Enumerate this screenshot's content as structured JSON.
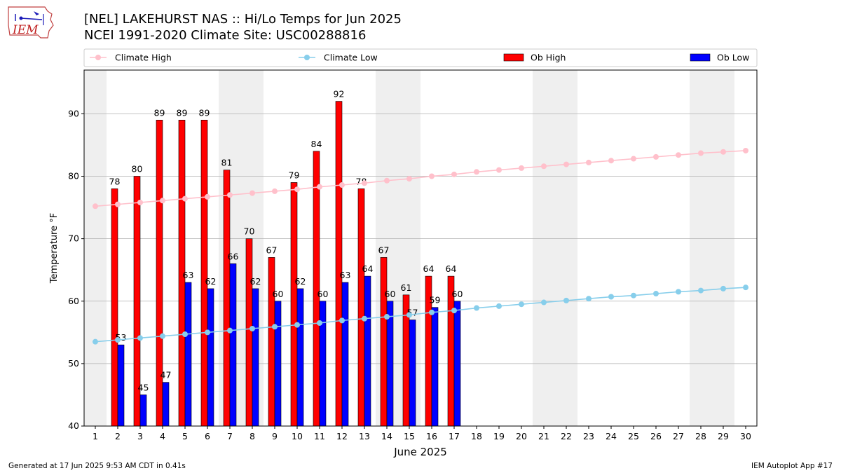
{
  "header": {
    "title_line1": "[NEL] LAKEHURST NAS :: Hi/Lo Temps for Jun 2025",
    "title_line2": "NCEI 1991-2020 Climate Site: USC00288816",
    "logo_text": "IEM"
  },
  "footer": {
    "generated": "Generated at 17 Jun 2025 9:53 AM CDT in 0.41s",
    "app": "IEM Autoplot App #17"
  },
  "colors": {
    "ob_high": "#ff0000",
    "ob_low": "#0000ff",
    "climate_high": "#ffc0cb",
    "climate_low": "#87ceeb",
    "weekend_shade": "#efefef",
    "grid": "#b0b0b0"
  },
  "chart_data": {
    "type": "bar",
    "xlabel": "June 2025",
    "ylabel": "Temperature °F",
    "ylim": [
      40,
      97
    ],
    "yticks": [
      40,
      50,
      60,
      70,
      80,
      90
    ],
    "grid": "horizontal",
    "legend_placement": "top",
    "legend": [
      "Climate High",
      "Climate Low",
      "Ob High",
      "Ob Low"
    ],
    "days": [
      1,
      2,
      3,
      4,
      5,
      6,
      7,
      8,
      9,
      10,
      11,
      12,
      13,
      14,
      15,
      16,
      17,
      18,
      19,
      20,
      21,
      22,
      23,
      24,
      25,
      26,
      27,
      28,
      29,
      30
    ],
    "weekend_days": [
      1,
      7,
      8,
      14,
      15,
      21,
      22,
      28,
      29
    ],
    "series": [
      {
        "name": "Ob High",
        "kind": "bar",
        "values": [
          null,
          78,
          80,
          89,
          89,
          89,
          81,
          70,
          67,
          79,
          84,
          92,
          78,
          67,
          61,
          64,
          64
        ]
      },
      {
        "name": "Ob Low",
        "kind": "bar",
        "values": [
          null,
          53,
          45,
          47,
          63,
          62,
          66,
          62,
          60,
          62,
          60,
          63,
          64,
          60,
          57,
          59,
          60
        ]
      },
      {
        "name": "Climate High",
        "kind": "line",
        "values": [
          75.2,
          75.5,
          75.8,
          76.1,
          76.4,
          76.7,
          77.0,
          77.3,
          77.6,
          77.9,
          78.3,
          78.6,
          78.9,
          79.3,
          79.6,
          80.0,
          80.3,
          80.7,
          81.0,
          81.3,
          81.6,
          81.9,
          82.2,
          82.5,
          82.8,
          83.1,
          83.4,
          83.7,
          83.9,
          84.1
        ]
      },
      {
        "name": "Climate Low",
        "kind": "line",
        "values": [
          53.5,
          53.8,
          54.1,
          54.4,
          54.7,
          55.0,
          55.3,
          55.6,
          55.9,
          56.2,
          56.5,
          56.9,
          57.2,
          57.5,
          57.8,
          58.2,
          58.5,
          58.9,
          59.2,
          59.5,
          59.8,
          60.1,
          60.4,
          60.7,
          60.9,
          61.2,
          61.5,
          61.7,
          62.0,
          62.2
        ]
      }
    ]
  }
}
